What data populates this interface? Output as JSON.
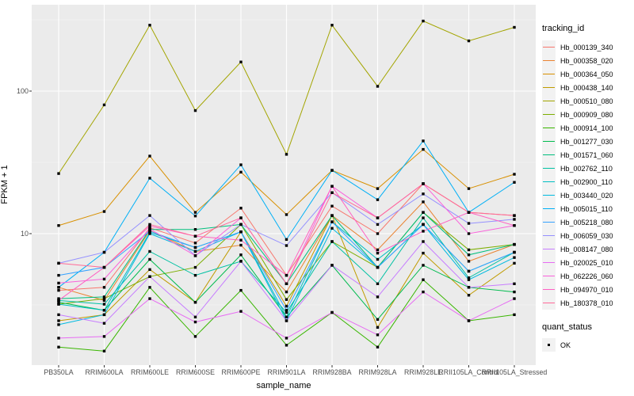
{
  "colors": {
    "panel_bg": "#EBEBEB",
    "grid_major": "#FFFFFF",
    "grid_minor": "#F5F5F5",
    "tick_mark": "#333333",
    "tick_label": "#4D4D4D",
    "point": "#000000",
    "legend_key_bg": "#F2F2F2"
  },
  "chart_data": {
    "type": "line",
    "title": "",
    "xlabel": "sample_name",
    "ylabel": "FPKM + 1",
    "y_scale": "log10",
    "ylim": [
      1.05,
      400
    ],
    "y_ticks": [
      10,
      100
    ],
    "y_tick_labels": [
      "10",
      "100"
    ],
    "grid": true,
    "legend_position": "right",
    "legend_title": "tracking_id",
    "quant_legend": {
      "title": "quant_status",
      "items": [
        "OK"
      ]
    },
    "x_categories": [
      "PB350LA",
      "RRIM600LA",
      "RRIM600LE",
      "RRIM600SE",
      "RRIM600PE",
      "RRIM901LA",
      "RRIM928BA",
      "RRIM928LA",
      "RRIM928LE",
      "RRII105LA_Control",
      "RRII105LA_Stressed"
    ],
    "series": [
      {
        "name": "Hb_000139_340",
        "color": "#F8766D",
        "values": [
          4.0,
          4.2,
          11.0,
          8.6,
          15.1,
          5.1,
          15.6,
          10.0,
          22.4,
          14.1,
          13.4
        ]
      },
      {
        "name": "Hb_000358_020",
        "color": "#EA8331",
        "values": [
          4.2,
          3.4,
          10.5,
          7.5,
          8.3,
          3.9,
          13.4,
          7.7,
          16.7,
          6.4,
          8.4
        ]
      },
      {
        "name": "Hb_000364_050",
        "color": "#D89000",
        "values": [
          11.4,
          14.3,
          35.0,
          14.1,
          27.0,
          13.6,
          27.8,
          20.7,
          39.0,
          20.7,
          26.1
        ]
      },
      {
        "name": "Hb_000438_140",
        "color": "#C09B00",
        "values": [
          2.45,
          2.7,
          5.6,
          3.3,
          10.3,
          3.1,
          13.4,
          2.2,
          7.3,
          3.7,
          6.2
        ]
      },
      {
        "name": "Hb_000510_080",
        "color": "#A3A500",
        "values": [
          26.4,
          80,
          290,
          73,
          160,
          36,
          290,
          108,
          310,
          225,
          280
        ]
      },
      {
        "name": "Hb_000909_080",
        "color": "#7CAE00",
        "values": [
          3.2,
          3.5,
          5.0,
          5.8,
          11.6,
          3.45,
          8.8,
          5.8,
          14.1,
          7.7,
          8.4
        ]
      },
      {
        "name": "Hb_000914_100",
        "color": "#39B600",
        "values": [
          1.6,
          1.5,
          4.2,
          1.9,
          4.0,
          1.65,
          2.8,
          1.6,
          4.75,
          2.45,
          2.7
        ]
      },
      {
        "name": "Hb_001277_030",
        "color": "#00BB4E",
        "values": [
          3.3,
          2.9,
          6.6,
          3.3,
          7.1,
          2.6,
          6.0,
          2.5,
          6.0,
          4.2,
          3.9
        ]
      },
      {
        "name": "Hb_001571_060",
        "color": "#00BF7D",
        "values": [
          3.5,
          3.6,
          10.7,
          10.7,
          11.6,
          4.45,
          13.4,
          5.8,
          14.1,
          7.1,
          8.4
        ]
      },
      {
        "name": "Hb_002762_110",
        "color": "#00C1A3",
        "values": [
          3.4,
          3.2,
          7.5,
          5.1,
          6.4,
          2.8,
          8.8,
          4.45,
          12.9,
          4.9,
          7.4
        ]
      },
      {
        "name": "Hb_002900_110",
        "color": "#00BFC4",
        "values": [
          3.2,
          2.9,
          10.2,
          8.0,
          10.3,
          2.6,
          12.1,
          6.6,
          11.6,
          5.45,
          7.4
        ]
      },
      {
        "name": "Hb_003440_020",
        "color": "#00BAE0",
        "values": [
          2.3,
          2.7,
          10.0,
          7.5,
          10.3,
          2.45,
          10.9,
          5.8,
          11.6,
          4.75,
          6.8
        ]
      },
      {
        "name": "Hb_005015_110",
        "color": "#00B0F6",
        "values": [
          4.2,
          7.4,
          24.5,
          13.3,
          30.4,
          9.1,
          27.8,
          17.3,
          44.7,
          14.1,
          22.9
        ]
      },
      {
        "name": "Hb_005218_080",
        "color": "#35A2FF",
        "values": [
          5.1,
          5.8,
          10.4,
          8.0,
          10.3,
          2.9,
          12.1,
          5.8,
          11.6,
          5.45,
          7.4
        ]
      },
      {
        "name": "Hb_006059_030",
        "color": "#9590FF",
        "values": [
          6.2,
          7.4,
          13.4,
          7.0,
          11.6,
          8.25,
          19.4,
          11.6,
          19.0,
          11.8,
          12.6
        ]
      },
      {
        "name": "Hb_008147_080",
        "color": "#C77CFF",
        "values": [
          2.7,
          2.35,
          5.0,
          2.6,
          6.4,
          2.45,
          6.0,
          3.6,
          8.8,
          4.2,
          4.45
        ]
      },
      {
        "name": "Hb_020025_010",
        "color": "#E76BF3",
        "values": [
          1.85,
          1.9,
          3.5,
          2.4,
          2.85,
          1.85,
          2.8,
          1.95,
          3.9,
          2.45,
          3.5
        ]
      },
      {
        "name": "Hb_062226_060",
        "color": "#FA62DB",
        "values": [
          4.5,
          4.8,
          10.8,
          7.0,
          12.9,
          4.45,
          21.5,
          12.9,
          22.4,
          10.0,
          11.4
        ]
      },
      {
        "name": "Hb_094970_010",
        "color": "#FF61C3",
        "values": [
          3.4,
          5.8,
          11.3,
          9.6,
          9.0,
          5.1,
          21.5,
          7.3,
          10.4,
          14.1,
          11.4
        ]
      },
      {
        "name": "Hb_180378_010",
        "color": "#FF6A98",
        "values": [
          6.2,
          5.8,
          11.6,
          9.6,
          12.9,
          4.45,
          19.4,
          12.9,
          22.4,
          14.1,
          13.4
        ]
      }
    ]
  }
}
